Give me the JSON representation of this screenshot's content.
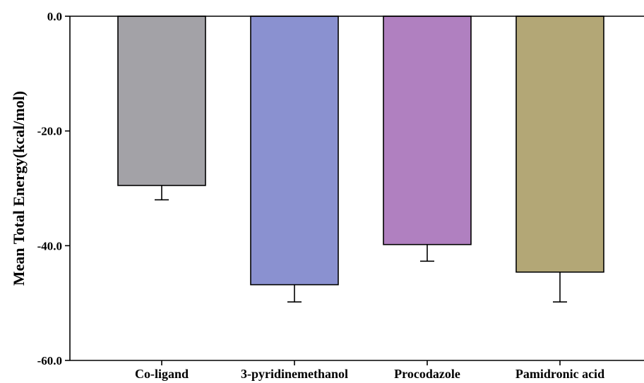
{
  "chart_data": {
    "type": "bar",
    "title": "",
    "xlabel": "",
    "ylabel": "Mean Total Energy(kcal/mol)",
    "categories": [
      "Co-ligand",
      "3-pyridinemethanol",
      "Procodazole",
      "Pamidronic acid"
    ],
    "values": [
      -29.5,
      -46.8,
      -39.8,
      -44.6
    ],
    "errors": [
      2.5,
      3.0,
      2.9,
      5.2
    ],
    "colors": [
      "#a3a2a7",
      "#8a91d0",
      "#b080c0",
      "#b3a776"
    ],
    "ylim": [
      -60,
      0
    ],
    "yticks": [
      0,
      -20,
      -40,
      -60
    ],
    "ytick_labels": [
      "0.0",
      "-20.0",
      "-40.0",
      "-60.0"
    ],
    "grid": false,
    "legend": "none"
  }
}
